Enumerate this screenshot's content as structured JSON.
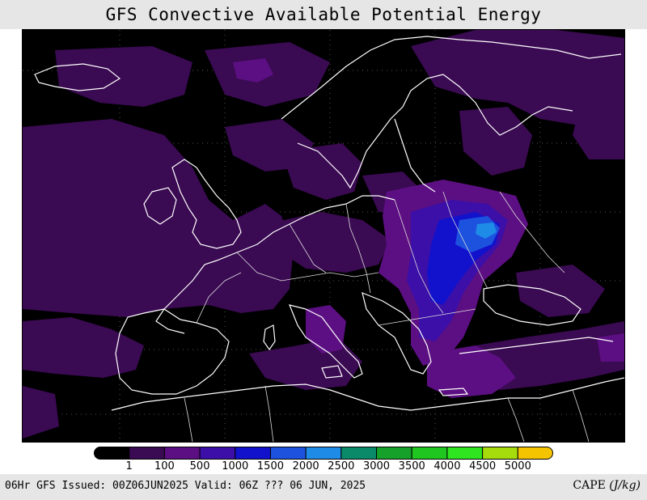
{
  "header": {
    "title": "GFS Convective Available Potential Energy"
  },
  "map": {
    "region": "Europe",
    "field": "CAPE",
    "background_color": "#000000",
    "coastline_color": "#ffffff",
    "gridline_color": "#555555"
  },
  "legend": {
    "labels": [
      "1",
      "100",
      "500",
      "1000",
      "1500",
      "2000",
      "2500",
      "3000",
      "3500",
      "4000",
      "4500",
      "5000"
    ],
    "colors": [
      "#000000",
      "#3a0a52",
      "#5c0f82",
      "#3b0fa8",
      "#1212cc",
      "#1d52de",
      "#1e8ce6",
      "#0b8a6a",
      "#16a12a",
      "#1fc61f",
      "#2ee51f",
      "#a6dc0c",
      "#f5c400"
    ]
  },
  "footer": {
    "info": "06Hr GFS Issued: 00Z06JUN2025 Valid: 06Z ??? 06 JUN, 2025",
    "variable": "CAPE",
    "unit": "(J/kg)"
  }
}
